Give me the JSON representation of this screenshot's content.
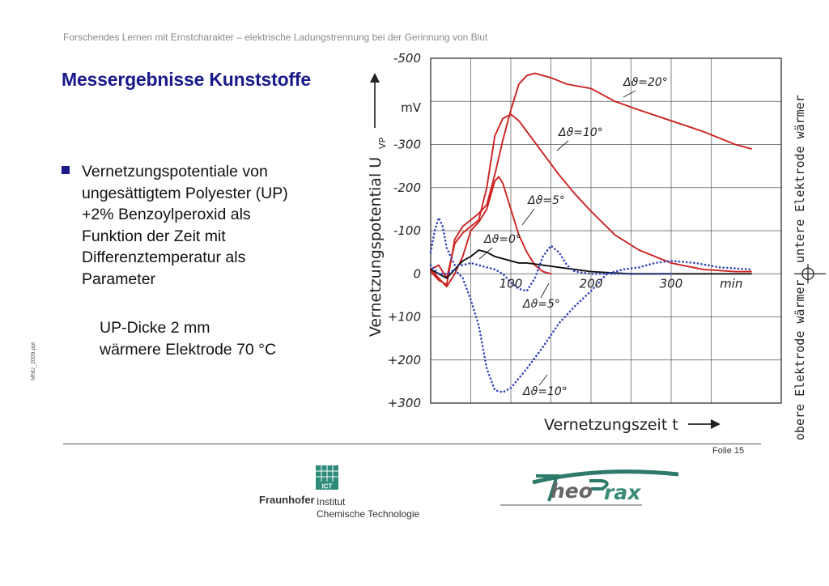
{
  "header": {
    "subtitle": "Forschendes Lernen mit Ernstcharakter – elektrische Ladungstrennung bei der Gerinnung von Blut"
  },
  "slide": {
    "title": "Messergebnisse Kunststoffe",
    "bullet_lines": [
      "Vernetzungspotentiale von",
      "ungesättigtem Polyester (UP)",
      "+2% Benzoylperoxid als",
      "Funktion der Zeit mit",
      "Differenztemperatur als",
      "Parameter"
    ],
    "note_lines": [
      "UP-Dicke 2 mm",
      "wärmere Elektrode 70 °C"
    ],
    "side_label": "MNU_2009.ppt",
    "slide_number": "Folie 15"
  },
  "colors": {
    "title": "#1a1a8c",
    "red_curve": "#cc2222",
    "blue_curve": "#3344bb",
    "black_curve": "#111111"
  },
  "logos": {
    "fraunhofer_word": "Fraunhofer",
    "ict_badge": "ICT",
    "institute_lines": [
      "Institut",
      "Chemische Technologie"
    ],
    "theoprax_part1": "heo",
    "theoprax_part2": "rax"
  },
  "chart_data": {
    "type": "line",
    "ylabel": "Vernetzungspotential U",
    "ylabel_sub": "VP",
    "y_unit": "mV",
    "xlabel": "Vernetzungszeit t",
    "x_unit": "min",
    "x_ticks": [
      "100",
      "200",
      "300"
    ],
    "y_ticks": [
      "-500",
      "-300",
      "-200",
      "-100",
      "0",
      "+100",
      "+200",
      "+300"
    ],
    "xlim": [
      0,
      400
    ],
    "ylim": [
      -500,
      300
    ],
    "y_inverted": true,
    "right_top_label": "untere Elektrode wärmer",
    "right_bottom_label": "obere Elektrode wärmer",
    "grid": true,
    "series": [
      {
        "name": "Δϑ=20°",
        "color": "#cc2222",
        "style": "solid",
        "x": [
          0,
          10,
          20,
          30,
          40,
          50,
          60,
          70,
          80,
          90,
          100,
          110,
          120,
          130,
          150,
          170,
          200,
          230,
          260,
          300,
          340,
          380,
          400
        ],
        "y": [
          -5,
          15,
          25,
          -80,
          -110,
          -125,
          -140,
          -160,
          -230,
          -310,
          -380,
          -440,
          -460,
          -465,
          -455,
          -440,
          -430,
          -400,
          -380,
          -355,
          -330,
          -300,
          -290
        ]
      },
      {
        "name": "Δϑ=10°",
        "color": "#cc2222",
        "style": "solid",
        "x": [
          0,
          10,
          20,
          30,
          40,
          50,
          60,
          70,
          80,
          90,
          100,
          110,
          120,
          140,
          160,
          180,
          200,
          230,
          260,
          300,
          340,
          380,
          400
        ],
        "y": [
          -10,
          -20,
          10,
          -70,
          -95,
          -110,
          -125,
          -200,
          -320,
          -360,
          -370,
          -355,
          -330,
          -280,
          -230,
          -185,
          -145,
          -90,
          -55,
          -25,
          -10,
          -5,
          -5
        ]
      },
      {
        "name": "Δϑ=5°",
        "color": "#cc2222",
        "style": "solid",
        "x": [
          0,
          10,
          20,
          30,
          40,
          50,
          60,
          70,
          80,
          85,
          90,
          100,
          110,
          120,
          130,
          140,
          150
        ],
        "y": [
          -10,
          10,
          30,
          0,
          -40,
          -100,
          -120,
          -150,
          -215,
          -225,
          -210,
          -150,
          -90,
          -50,
          -20,
          -5,
          0
        ]
      },
      {
        "name": "Δϑ=0°",
        "color": "#111111",
        "style": "solid",
        "x": [
          0,
          10,
          20,
          30,
          40,
          50,
          60,
          70,
          80,
          90,
          100,
          110,
          120,
          140,
          160,
          180,
          200,
          250,
          300,
          350,
          400
        ],
        "y": [
          -10,
          0,
          10,
          -10,
          -30,
          -40,
          -55,
          -50,
          -40,
          -35,
          -30,
          -25,
          -25,
          -20,
          -15,
          -10,
          -5,
          0,
          0,
          0,
          0
        ]
      },
      {
        "name": "Δϑ=5°",
        "color": "#3344bb",
        "style": "dotted",
        "x": [
          0,
          5,
          10,
          15,
          20,
          30,
          40,
          50,
          60,
          70,
          80,
          90,
          100,
          110,
          120,
          130,
          140,
          150,
          160,
          170,
          180,
          200,
          250,
          300
        ],
        "y": [
          -50,
          -100,
          -130,
          -110,
          -60,
          -20,
          -20,
          -25,
          -20,
          -15,
          -10,
          0,
          20,
          35,
          40,
          10,
          -40,
          -65,
          -50,
          -20,
          -5,
          0,
          0,
          0
        ]
      },
      {
        "name": "Δϑ=10°",
        "color": "#3344bb",
        "style": "dotted",
        "x": [
          0,
          10,
          20,
          30,
          40,
          50,
          60,
          70,
          80,
          90,
          100,
          120,
          140,
          160,
          180,
          200,
          220,
          240,
          260,
          280,
          300,
          330,
          360,
          400
        ],
        "y": [
          -20,
          0,
          0,
          -10,
          10,
          60,
          120,
          220,
          270,
          275,
          265,
          220,
          170,
          115,
          75,
          40,
          0,
          -10,
          -15,
          -25,
          -30,
          -25,
          -15,
          -10
        ]
      }
    ],
    "annotations": [
      "Δϑ=20°",
      "Δϑ=10°",
      "Δϑ=5°",
      "Δϑ=0°",
      "Δϑ=5°",
      "Δϑ=10°"
    ]
  }
}
